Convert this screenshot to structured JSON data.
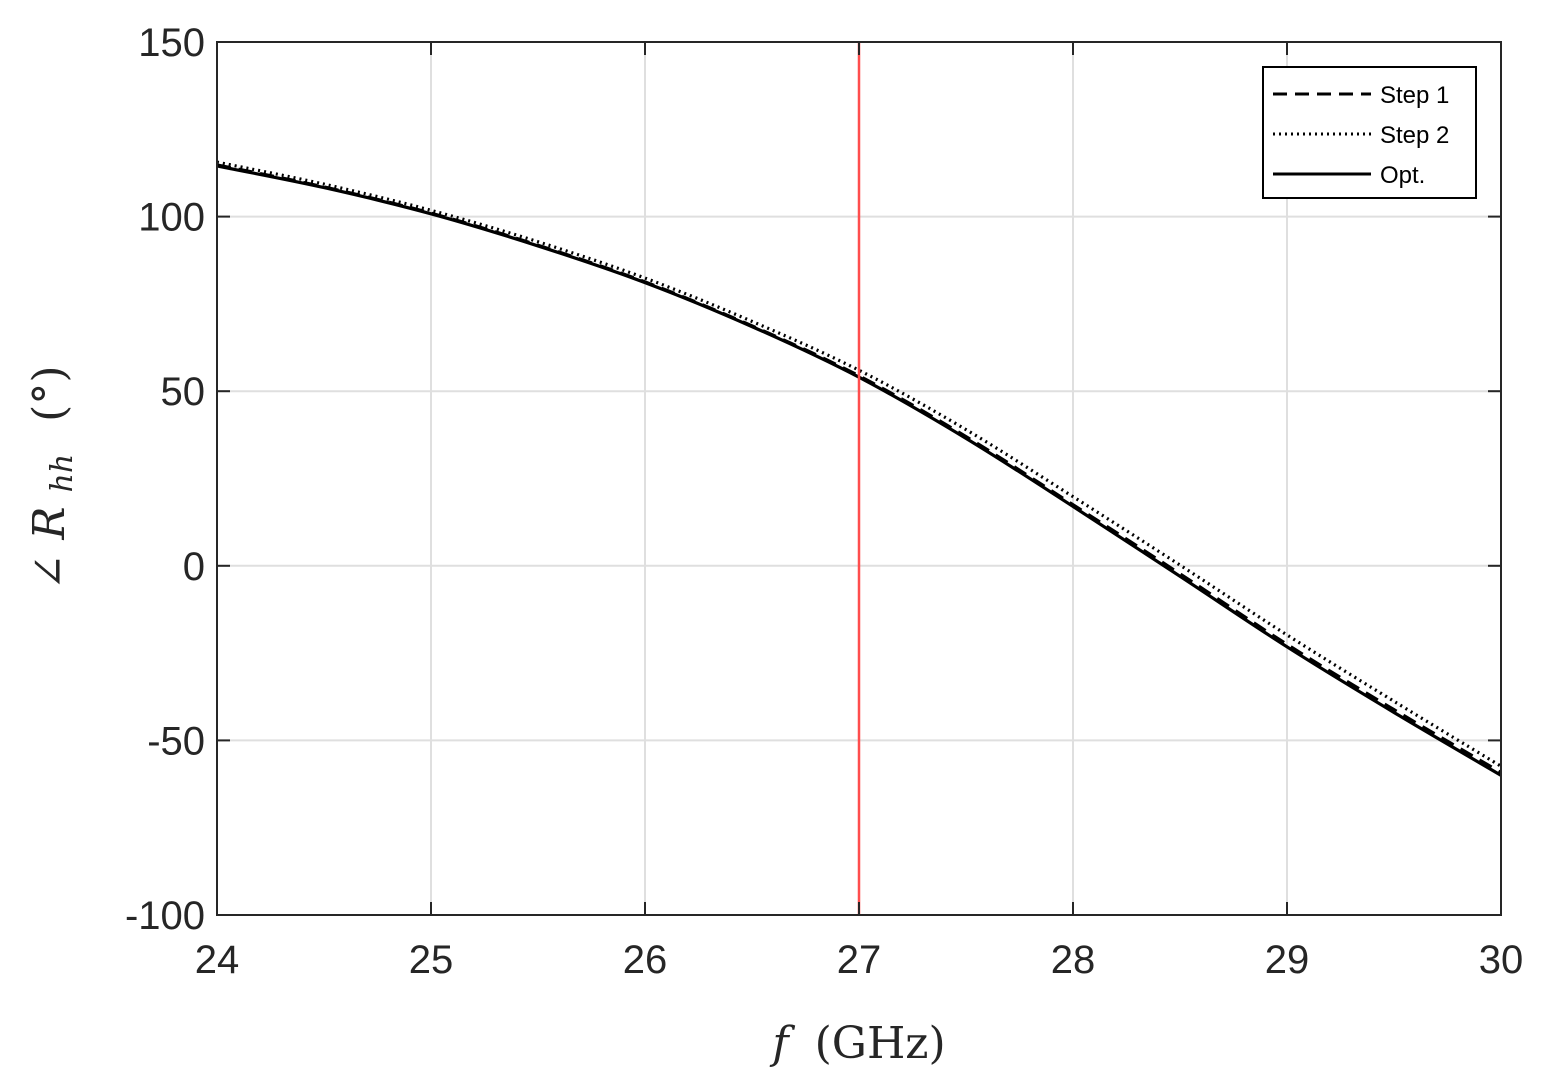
{
  "chart_data": {
    "type": "line",
    "xlabel_italic": "f",
    "xlabel_unit": "(GHz)",
    "ylabel_angle": "∠",
    "ylabel_symbol": "R",
    "ylabel_subscript": "hh",
    "ylabel_unit": "(°)",
    "xlim": [
      24,
      30
    ],
    "ylim": [
      -100,
      150
    ],
    "xticks": [
      24,
      25,
      26,
      27,
      28,
      29,
      30
    ],
    "yticks": [
      -100,
      -50,
      0,
      50,
      100,
      150
    ],
    "xtick_labels": [
      "24",
      "25",
      "26",
      "27",
      "28",
      "29",
      "30"
    ],
    "ytick_labels": [
      "-100",
      "-50",
      "0",
      "50",
      "100",
      "150"
    ],
    "grid": true,
    "legend_position": "top-right",
    "reference_line": {
      "x": 27,
      "color": "#ff4d4d"
    },
    "series": [
      {
        "name": "Step 1",
        "style": "dashed",
        "color": "#000000",
        "x": [
          24,
          24.5,
          25,
          25.5,
          26,
          26.5,
          27,
          27.5,
          28,
          28.5,
          29,
          29.5,
          30
        ],
        "y": [
          114.8,
          108.5,
          101,
          91.8,
          81.3,
          68.7,
          54.4,
          37,
          17.5,
          -2.3,
          -22.5,
          -41.2,
          -59.2
        ]
      },
      {
        "name": "Step 2",
        "style": "dotted",
        "color": "#000000",
        "x": [
          24,
          24.5,
          25,
          25.5,
          26,
          26.5,
          27,
          27.5,
          28,
          28.5,
          29,
          29.5,
          30
        ],
        "y": [
          115.6,
          109.3,
          101.8,
          92.8,
          82.4,
          70,
          56,
          39,
          19.8,
          0.2,
          -19.8,
          -38.8,
          -57.4
        ]
      },
      {
        "name": "Opt.",
        "style": "solid",
        "color": "#000000",
        "x": [
          24,
          24.5,
          25,
          25.5,
          26,
          26.5,
          27,
          27.5,
          28,
          28.5,
          29,
          29.5,
          30
        ],
        "y": [
          114.5,
          108.3,
          100.8,
          91.6,
          81.1,
          68.5,
          54,
          36.5,
          17,
          -3,
          -23.2,
          -42,
          -60
        ]
      }
    ]
  }
}
